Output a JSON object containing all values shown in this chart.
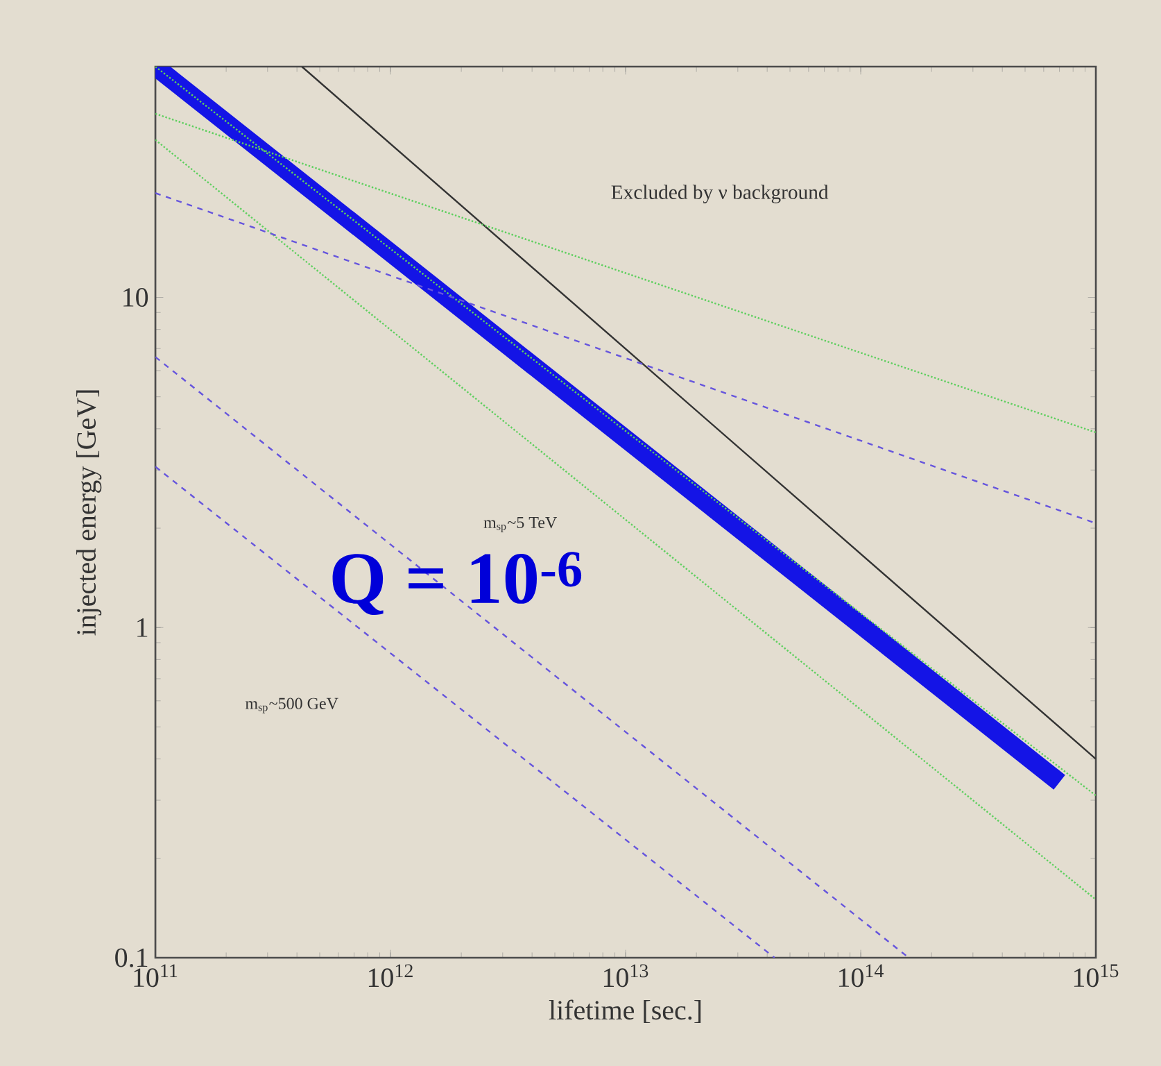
{
  "chart_data": {
    "type": "line",
    "xlabel": "lifetime [sec.]",
    "ylabel": "injected energy [GeV]",
    "log": "xy",
    "marker": "none",
    "xlim": [
      100000000000.0,
      1000000000000000.0
    ],
    "ylim": [
      0.1,
      50
    ],
    "xticks": [
      {
        "value": 100000000000.0,
        "label": "10$^{11}$"
      },
      {
        "value": 1000000000000.0,
        "label": "10$^{12}$"
      },
      {
        "value": 10000000000000.0,
        "label": "10$^{13}$"
      },
      {
        "value": 100000000000000.0,
        "label": "10$^{14}$"
      },
      {
        "value": 1000000000000000.0,
        "label": "10$^{15}$"
      }
    ],
    "yticks": [
      0.1,
      1,
      10
    ],
    "series": [
      {
        "color": "#1414e6",
        "line_style": "solid",
        "x": [
          100000000000.0,
          700000000000000.0
        ],
        "values": [
          50,
          0.34
        ]
      },
      {
        "color": "#333333",
        "line_style": "solid",
        "x": [
          420000000000.0,
          1000000000000000.0
        ],
        "values": [
          50,
          0.4
        ]
      },
      {
        "color": "#5fcf5f",
        "line_style": "dotted",
        "x": [
          100000000000.0,
          1000000000000000.0
        ],
        "values": [
          50,
          0.31
        ]
      },
      {
        "color": "#5fcf5f",
        "line_style": "dotted",
        "x": [
          100000000000.0,
          1000000000000000.0
        ],
        "values": [
          36,
          3.9
        ]
      },
      {
        "color": "#5fcf5f",
        "line_style": "dotted",
        "x": [
          100000000000.0,
          1000000000000000.0
        ],
        "values": [
          30,
          0.15
        ]
      },
      {
        "color": "#6655dd",
        "line_style": "dashed",
        "x": [
          100000000000.0,
          1000000000000000.0
        ],
        "values": [
          20.7,
          2.07
        ]
      },
      {
        "color": "#6655dd",
        "line_style": "dashed",
        "x": [
          100000000000.0,
          160000000000000.0
        ],
        "values": [
          6.6,
          0.1
        ]
      },
      {
        "color": "#6655dd",
        "line_style": "dashed",
        "x": [
          100000000000.0,
          43000000000000.0
        ],
        "values": [
          3.07,
          0.1
        ]
      }
    ],
    "annotations": [
      "Excluded by ν background",
      "m$_{sp}$~5 TeV",
      "m$_{sp}$~500 GeV",
      "Q = 10$^{-6}$"
    ]
  }
}
